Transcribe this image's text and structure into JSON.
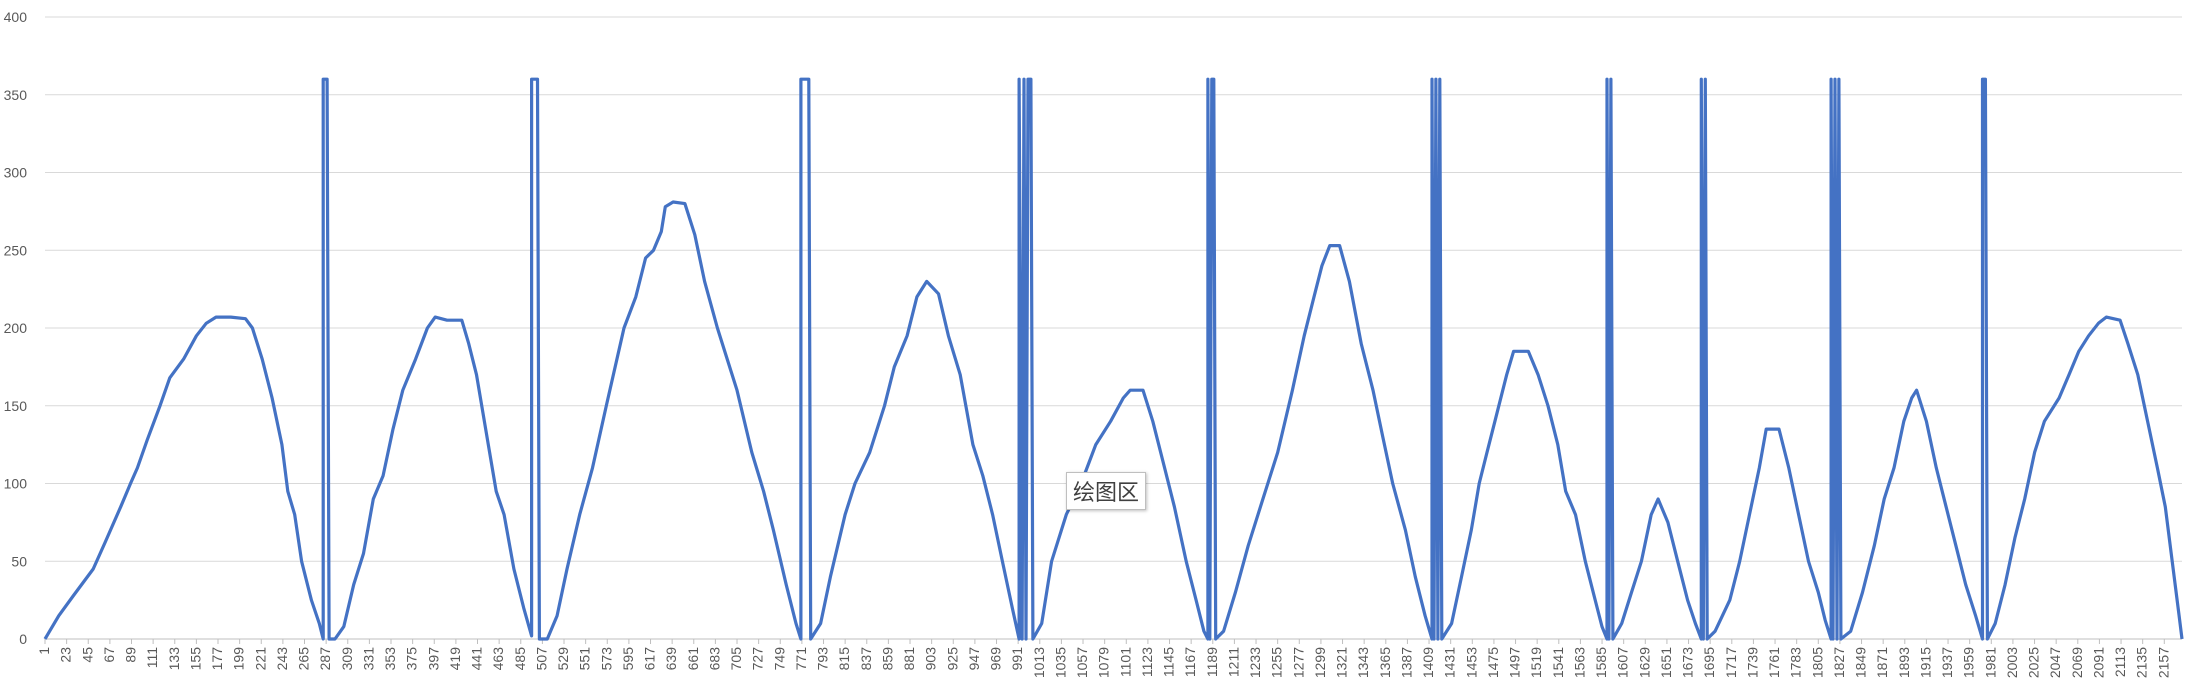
{
  "tooltip": {
    "text": "绘图区"
  },
  "colors": {
    "series": "#4472c4",
    "grid": "#d9d9d9",
    "axis_text": "#595959"
  },
  "chart_data": {
    "type": "line",
    "title": "",
    "xlabel": "",
    "ylabel": "",
    "ylim": [
      0,
      400
    ],
    "yticks": [
      0,
      50,
      100,
      150,
      200,
      250,
      300,
      350,
      400
    ],
    "xlim": [
      1,
      2175
    ],
    "xtick_start": 1,
    "xtick_step": 22,
    "xtick_count": 99,
    "grid": true,
    "legend": "none",
    "series": [
      {
        "points": [
          [
            1,
            0
          ],
          [
            15,
            15
          ],
          [
            30,
            28
          ],
          [
            50,
            45
          ],
          [
            62,
            62
          ],
          [
            78,
            85
          ],
          [
            88,
            100
          ],
          [
            95,
            110
          ],
          [
            105,
            128
          ],
          [
            118,
            150
          ],
          [
            128,
            168
          ],
          [
            142,
            180
          ],
          [
            155,
            195
          ],
          [
            165,
            203
          ],
          [
            175,
            207
          ],
          [
            190,
            207
          ],
          [
            205,
            206
          ],
          [
            212,
            200
          ],
          [
            222,
            180
          ],
          [
            232,
            155
          ],
          [
            242,
            125
          ],
          [
            248,
            95
          ],
          [
            255,
            80
          ],
          [
            262,
            50
          ],
          [
            272,
            25
          ],
          [
            280,
            10
          ],
          [
            284,
            0
          ],
          [
            284,
            360
          ],
          [
            288,
            360
          ],
          [
            290,
            0
          ],
          [
            296,
            0
          ],
          [
            305,
            8
          ],
          [
            315,
            35
          ],
          [
            325,
            55
          ],
          [
            335,
            90
          ],
          [
            345,
            105
          ],
          [
            355,
            135
          ],
          [
            365,
            160
          ],
          [
            378,
            180
          ],
          [
            390,
            200
          ],
          [
            398,
            207
          ],
          [
            410,
            205
          ],
          [
            425,
            205
          ],
          [
            432,
            190
          ],
          [
            440,
            170
          ],
          [
            452,
            125
          ],
          [
            460,
            95
          ],
          [
            468,
            80
          ],
          [
            478,
            45
          ],
          [
            488,
            20
          ],
          [
            496,
            2
          ],
          [
            496,
            360
          ],
          [
            502,
            360
          ],
          [
            504,
            0
          ],
          [
            512,
            0
          ],
          [
            522,
            15
          ],
          [
            532,
            45
          ],
          [
            545,
            80
          ],
          [
            558,
            110
          ],
          [
            572,
            150
          ],
          [
            590,
            200
          ],
          [
            602,
            220
          ],
          [
            612,
            245
          ],
          [
            620,
            250
          ],
          [
            628,
            262
          ],
          [
            632,
            278
          ],
          [
            640,
            281
          ],
          [
            652,
            280
          ],
          [
            662,
            260
          ],
          [
            672,
            230
          ],
          [
            685,
            200
          ],
          [
            695,
            180
          ],
          [
            705,
            160
          ],
          [
            720,
            120
          ],
          [
            732,
            95
          ],
          [
            742,
            70
          ],
          [
            755,
            35
          ],
          [
            765,
            10
          ],
          [
            770,
            0
          ],
          [
            770,
            360
          ],
          [
            778,
            360
          ],
          [
            780,
            0
          ],
          [
            790,
            10
          ],
          [
            800,
            40
          ],
          [
            815,
            80
          ],
          [
            825,
            100
          ],
          [
            840,
            120
          ],
          [
            855,
            150
          ],
          [
            865,
            175
          ],
          [
            878,
            195
          ],
          [
            888,
            220
          ],
          [
            898,
            230
          ],
          [
            910,
            222
          ],
          [
            920,
            195
          ],
          [
            932,
            170
          ],
          [
            945,
            125
          ],
          [
            955,
            105
          ],
          [
            965,
            80
          ],
          [
            975,
            50
          ],
          [
            985,
            20
          ],
          [
            992,
            0
          ],
          [
            992,
            360
          ],
          [
            995,
            0
          ],
          [
            997,
            360
          ],
          [
            999,
            0
          ],
          [
            1001,
            360
          ],
          [
            1004,
            360
          ],
          [
            1006,
            0
          ],
          [
            1015,
            10
          ],
          [
            1025,
            50
          ],
          [
            1040,
            80
          ],
          [
            1055,
            100
          ],
          [
            1070,
            125
          ],
          [
            1085,
            140
          ],
          [
            1098,
            155
          ],
          [
            1105,
            160
          ],
          [
            1118,
            160
          ],
          [
            1128,
            140
          ],
          [
            1140,
            110
          ],
          [
            1150,
            85
          ],
          [
            1162,
            50
          ],
          [
            1172,
            25
          ],
          [
            1180,
            5
          ],
          [
            1184,
            0
          ],
          [
            1184,
            360
          ],
          [
            1186,
            0
          ],
          [
            1188,
            360
          ],
          [
            1190,
            360
          ],
          [
            1192,
            0
          ],
          [
            1200,
            5
          ],
          [
            1212,
            30
          ],
          [
            1225,
            60
          ],
          [
            1240,
            90
          ],
          [
            1255,
            120
          ],
          [
            1270,
            160
          ],
          [
            1282,
            195
          ],
          [
            1292,
            220
          ],
          [
            1300,
            240
          ],
          [
            1308,
            253
          ],
          [
            1318,
            253
          ],
          [
            1328,
            230
          ],
          [
            1340,
            190
          ],
          [
            1352,
            160
          ],
          [
            1362,
            130
          ],
          [
            1372,
            100
          ],
          [
            1385,
            70
          ],
          [
            1395,
            40
          ],
          [
            1405,
            15
          ],
          [
            1412,
            0
          ],
          [
            1412,
            360
          ],
          [
            1414,
            0
          ],
          [
            1416,
            360
          ],
          [
            1418,
            0
          ],
          [
            1420,
            360
          ],
          [
            1422,
            0
          ],
          [
            1432,
            10
          ],
          [
            1442,
            40
          ],
          [
            1452,
            70
          ],
          [
            1460,
            100
          ],
          [
            1468,
            120
          ],
          [
            1476,
            140
          ],
          [
            1488,
            170
          ],
          [
            1495,
            185
          ],
          [
            1510,
            185
          ],
          [
            1520,
            170
          ],
          [
            1530,
            150
          ],
          [
            1540,
            125
          ],
          [
            1548,
            95
          ],
          [
            1558,
            80
          ],
          [
            1568,
            50
          ],
          [
            1578,
            25
          ],
          [
            1585,
            8
          ],
          [
            1590,
            0
          ],
          [
            1590,
            360
          ],
          [
            1592,
            0
          ],
          [
            1594,
            360
          ],
          [
            1596,
            0
          ],
          [
            1605,
            10
          ],
          [
            1615,
            30
          ],
          [
            1625,
            50
          ],
          [
            1635,
            80
          ],
          [
            1642,
            90
          ],
          [
            1652,
            75
          ],
          [
            1662,
            50
          ],
          [
            1672,
            25
          ],
          [
            1680,
            10
          ],
          [
            1686,
            0
          ],
          [
            1686,
            360
          ],
          [
            1688,
            0
          ],
          [
            1690,
            360
          ],
          [
            1692,
            0
          ],
          [
            1700,
            5
          ],
          [
            1715,
            25
          ],
          [
            1725,
            50
          ],
          [
            1735,
            80
          ],
          [
            1745,
            110
          ],
          [
            1752,
            135
          ],
          [
            1765,
            135
          ],
          [
            1775,
            110
          ],
          [
            1785,
            80
          ],
          [
            1795,
            50
          ],
          [
            1805,
            30
          ],
          [
            1812,
            12
          ],
          [
            1818,
            0
          ],
          [
            1818,
            360
          ],
          [
            1820,
            0
          ],
          [
            1822,
            360
          ],
          [
            1824,
            0
          ],
          [
            1826,
            360
          ],
          [
            1828,
            0
          ],
          [
            1838,
            5
          ],
          [
            1850,
            30
          ],
          [
            1862,
            60
          ],
          [
            1872,
            90
          ],
          [
            1882,
            110
          ],
          [
            1892,
            140
          ],
          [
            1900,
            155
          ],
          [
            1905,
            160
          ],
          [
            1915,
            140
          ],
          [
            1925,
            110
          ],
          [
            1935,
            85
          ],
          [
            1945,
            60
          ],
          [
            1955,
            35
          ],
          [
            1965,
            15
          ],
          [
            1972,
            0
          ],
          [
            1972,
            360
          ],
          [
            1975,
            360
          ],
          [
            1977,
            0
          ],
          [
            1985,
            10
          ],
          [
            1995,
            35
          ],
          [
            2005,
            65
          ],
          [
            2015,
            90
          ],
          [
            2025,
            120
          ],
          [
            2035,
            140
          ],
          [
            2050,
            155
          ],
          [
            2060,
            170
          ],
          [
            2070,
            185
          ],
          [
            2080,
            195
          ],
          [
            2090,
            203
          ],
          [
            2098,
            207
          ],
          [
            2112,
            205
          ],
          [
            2120,
            190
          ],
          [
            2130,
            170
          ],
          [
            2140,
            140
          ],
          [
            2150,
            110
          ],
          [
            2158,
            85
          ],
          [
            2165,
            50
          ],
          [
            2172,
            15
          ],
          [
            2175,
            0
          ]
        ]
      }
    ]
  }
}
